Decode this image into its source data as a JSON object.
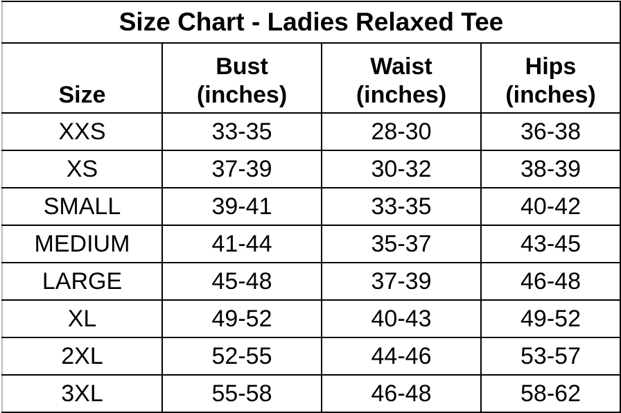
{
  "title": "Size Chart - Ladies Relaxed Tee",
  "headers": [
    {
      "line1": "",
      "line2": "Size"
    },
    {
      "line1": "Bust",
      "line2": "(inches)"
    },
    {
      "line1": "Waist",
      "line2": "(inches)"
    },
    {
      "line1": "Hips",
      "line2": "(inches)"
    }
  ],
  "rows": [
    [
      "XXS",
      "33-35",
      "28-30",
      "36-38"
    ],
    [
      "XS",
      "37-39",
      "30-32",
      "38-39"
    ],
    [
      "SMALL",
      "39-41",
      "33-35",
      "40-42"
    ],
    [
      "MEDIUM",
      "41-44",
      "35-37",
      "43-45"
    ],
    [
      "LARGE",
      "45-48",
      "37-39",
      "46-48"
    ],
    [
      "XL",
      "49-52",
      "40-43",
      "49-52"
    ],
    [
      "2XL",
      "52-55",
      "44-46",
      "53-57"
    ],
    [
      "3XL",
      "55-58",
      "46-48",
      "58-62"
    ]
  ]
}
